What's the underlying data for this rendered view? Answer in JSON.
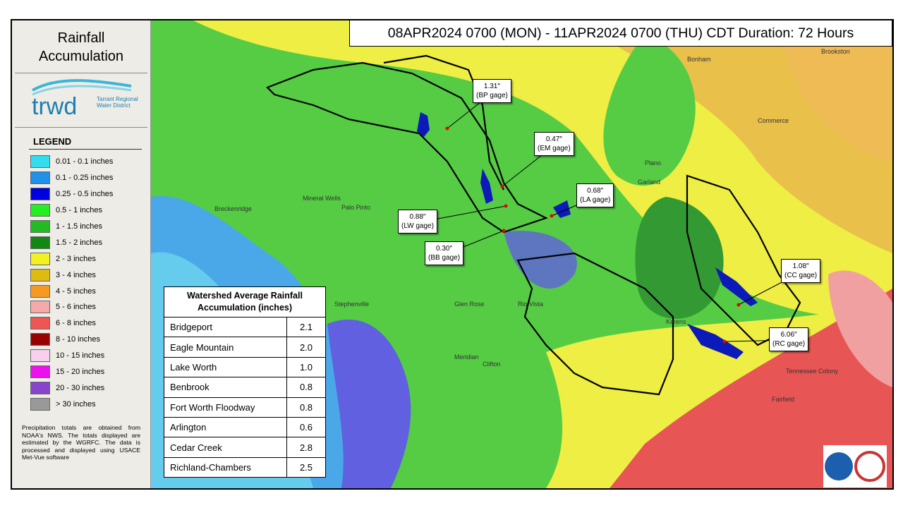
{
  "sidebar": {
    "title": "Rainfall Accumulation",
    "logo": {
      "name": "trwd",
      "subtitle": "Tarrant Regional Water District"
    },
    "legend": {
      "title": "LEGEND",
      "items": [
        {
          "label": "0.01 - 0.1 inches",
          "color": "#33ddee"
        },
        {
          "label": "0.1 - 0.25 inches",
          "color": "#2090e8"
        },
        {
          "label": "0.25 - 0.5 inches",
          "color": "#0000e0"
        },
        {
          "label": "0.5 - 1 inches",
          "color": "#22ee22"
        },
        {
          "label": "1 - 1.5 inches",
          "color": "#22bb22"
        },
        {
          "label": "1.5 - 2 inches",
          "color": "#118811"
        },
        {
          "label": "2 - 3 inches",
          "color": "#f2f222"
        },
        {
          "label": "3 - 4 inches",
          "color": "#ddbb11"
        },
        {
          "label": "4 - 5 inches",
          "color": "#f59922"
        },
        {
          "label": "5 - 6 inches",
          "color": "#f5aaaa"
        },
        {
          "label": "6 - 8 inches",
          "color": "#ee5555"
        },
        {
          "label": "8 - 10 inches",
          "color": "#990000"
        },
        {
          "label": "10 - 15 inches",
          "color": "#f8d0ee"
        },
        {
          "label": "15 - 20 inches",
          "color": "#ee11ee"
        },
        {
          "label": "20 - 30 inches",
          "color": "#8844cc"
        },
        {
          "label": "> 30 inches",
          "color": "#999999"
        }
      ]
    },
    "note": "Precipitation totals are obtained from NOAA's NWS. The totals displayed are estimated by the WGRFC. The data is processed and displayed using USACE Met-Vue software"
  },
  "header": {
    "title": "08APR2024 0700 (MON) - 11APR2024 0700 (THU) CDT Duration: 72 Hours"
  },
  "table": {
    "title": "Watershed Average Rainfall Accumulation (inches)",
    "rows": [
      [
        "Bridgeport",
        "2.1"
      ],
      [
        "Eagle Mountain",
        "2.0"
      ],
      [
        "Lake Worth",
        "1.0"
      ],
      [
        "Benbrook",
        "0.8"
      ],
      [
        "Fort Worth  Floodway",
        "0.8"
      ],
      [
        "Arlington",
        "0.6"
      ],
      [
        "Cedar Creek",
        "2.8"
      ],
      [
        "Richland-Chambers",
        "2.5"
      ]
    ]
  },
  "gages": [
    {
      "value": "1.31″",
      "label": "(BP gage)"
    },
    {
      "value": "0.47″",
      "label": "(EM gage)"
    },
    {
      "value": "0.68″",
      "label": "(LA gage)"
    },
    {
      "value": "0.88″",
      "label": "(LW gage)"
    },
    {
      "value": "0.30″",
      "label": "(BB gage)"
    },
    {
      "value": "1.08″",
      "label": "(CC gage)"
    },
    {
      "value": "6.06″",
      "label": "(RC gage)"
    }
  ],
  "places": [
    "Garland",
    "Plano",
    "Stephenville",
    "Breckenridge",
    "Mineral Wells",
    "Palo Pinto",
    "Glen Rose",
    "Rio Vista",
    "Kerens",
    "Commerce",
    "Bonham",
    "Brookston",
    "Tennessee Colony",
    "Fairfield",
    "Clifton",
    "Meridian"
  ]
}
